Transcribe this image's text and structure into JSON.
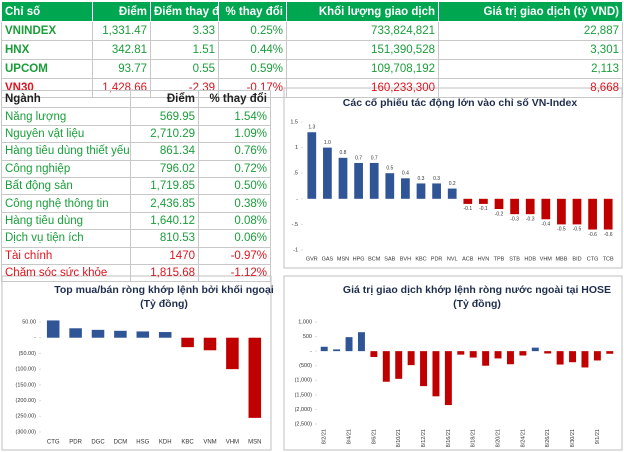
{
  "index_table": {
    "headers": [
      "Chỉ số",
      "Điểm",
      "Điểm thay đổi",
      "% thay đổi",
      "Khối lượng giao dịch",
      "Giá trị giao dịch (tỷ VND)"
    ],
    "rows": [
      [
        "VNINDEX",
        "1,331.47",
        "3.33",
        "0.25%",
        "733,824,821",
        "22,887"
      ],
      [
        "HNX",
        "342.81",
        "1.51",
        "0.44%",
        "151,390,528",
        "3,301"
      ],
      [
        "UPCOM",
        "93.77",
        "0.55",
        "0.59%",
        "109,708,192",
        "2,113"
      ],
      [
        "VN30",
        "1,428.66",
        "-2.39",
        "-0.17%",
        "160,233,300",
        "8,668"
      ]
    ]
  },
  "sector_table": {
    "headers": [
      "Ngành",
      "Điểm",
      "% thay đổi"
    ],
    "rows": [
      [
        "Năng lượng",
        "569.95",
        "1.54%"
      ],
      [
        "Nguyên vật liệu",
        "2,710.29",
        "1.09%"
      ],
      [
        "Hàng tiêu dùng thiết yếu",
        "861.34",
        "0.76%"
      ],
      [
        "Công nghiệp",
        "796.02",
        "0.72%"
      ],
      [
        "Bất động sản",
        "1,719.85",
        "0.50%"
      ],
      [
        "Công nghệ thông tin",
        "2,436.85",
        "0.38%"
      ],
      [
        "Hàng tiêu dùng",
        "1,640.12",
        "0.08%"
      ],
      [
        "Dịch vụ tiện ích",
        "810.53",
        "0.06%"
      ],
      [
        "Tài chính",
        "1470",
        "-0.97%"
      ],
      [
        "Chăm sóc sức khỏe",
        "1,815.68",
        "-1.12%"
      ]
    ]
  },
  "chart_data": [
    {
      "type": "bar",
      "title": "Các cổ phiếu tác động lớn vào chỉ số VN-Index",
      "categories": [
        "GVR",
        "GAS",
        "MSN",
        "HPG",
        "BCM",
        "SAB",
        "BVH",
        "KBC",
        "PDR",
        "NVL",
        "ACB",
        "HVN",
        "TPB",
        "STB",
        "HDB",
        "VHM",
        "MBB",
        "BID",
        "CTG",
        "TCB"
      ],
      "values": [
        1.3,
        1.0,
        0.8,
        0.7,
        0.7,
        0.5,
        0.4,
        0.3,
        0.3,
        0.2,
        -0.1,
        -0.1,
        -0.2,
        -0.3,
        -0.3,
        -0.4,
        -0.5,
        -0.5,
        -0.6,
        -0.6
      ],
      "value_labels": [
        "1.3",
        "1.0",
        "0.8",
        "0.7",
        "0.7",
        "0.5",
        "0.4",
        "0.3",
        "0.3",
        "0.2",
        "-0.1",
        "-0.1",
        "-0.2",
        "-0.3",
        "-0.3",
        "-0.4",
        "-0.5",
        "-0.5",
        "-0.6",
        "-0.6"
      ],
      "ylim": [
        -1,
        1.5
      ],
      "yticks": [
        1.5,
        1,
        {
          "value": 0.5,
          "label": ".5"
        },
        {
          "value": 0,
          "label": "-"
        },
        {
          "value": -0.5,
          "label": "-.5"
        },
        -1
      ],
      "color": "#2f5597",
      "negative_color": "#c00000"
    },
    {
      "type": "bar",
      "title": "Top mua/bán ròng khớp lệnh bởi khối ngoại",
      "subtitle": "(Tỷ đồng)",
      "categories": [
        "CTG",
        "PDR",
        "DGC",
        "DCM",
        "HSG",
        "KDH",
        "KBC",
        "VNM",
        "VHM",
        "MSN"
      ],
      "values": [
        55,
        30,
        25,
        22,
        20,
        18,
        -30,
        -40,
        -100,
        -255
      ],
      "ylim": [
        -300,
        50
      ],
      "yticks": [
        {
          "value": 50,
          "label": "50.00"
        },
        {
          "value": 0,
          "label": "-"
        },
        {
          "value": -50,
          "label": "(50.00)"
        },
        {
          "value": -100,
          "label": "(100.00)"
        },
        {
          "value": -150,
          "label": "(150.00)"
        },
        {
          "value": -200,
          "label": "(200.00)"
        },
        {
          "value": -250,
          "label": "(250.00)"
        },
        {
          "value": -300,
          "label": "(300.00)"
        }
      ],
      "color": "#2f5597",
      "negative_color": "#c00000"
    },
    {
      "type": "bar",
      "title": "Giá trị giao dịch khớp lệnh ròng nước ngoài tại HOSE",
      "subtitle": "(Tỷ đồng)",
      "categories": [
        "8/2/21",
        null,
        "8/4/21",
        null,
        "8/6/21",
        null,
        "8/10/21",
        null,
        "8/12/21",
        null,
        "8/16/21",
        null,
        "8/18/21",
        null,
        "8/20/21",
        null,
        "8/24/21",
        null,
        "8/26/21",
        null,
        "8/30/21",
        null,
        "9/1/21",
        null
      ],
      "values": [
        150,
        60,
        480,
        650,
        -200,
        -1050,
        -950,
        -480,
        -1200,
        -1550,
        -1850,
        -120,
        -220,
        -500,
        -250,
        -450,
        -150,
        120,
        -80,
        -460,
        -380,
        -560,
        -320,
        -90
      ],
      "ylim": [
        -2500,
        1000
      ],
      "yticks": [
        {
          "value": 1000,
          "label": "1,000"
        },
        500,
        {
          "value": 0,
          "label": "-"
        },
        {
          "value": -500,
          "label": "(500)"
        },
        {
          "value": -1000,
          "label": "(1,000)"
        },
        {
          "value": -1500,
          "label": "(1,500)"
        },
        {
          "value": -2000,
          "label": "(2,000)"
        },
        {
          "value": -2500,
          "label": "(2,500)"
        }
      ],
      "color": "#2f5597",
      "negative_color": "#c00000"
    }
  ]
}
